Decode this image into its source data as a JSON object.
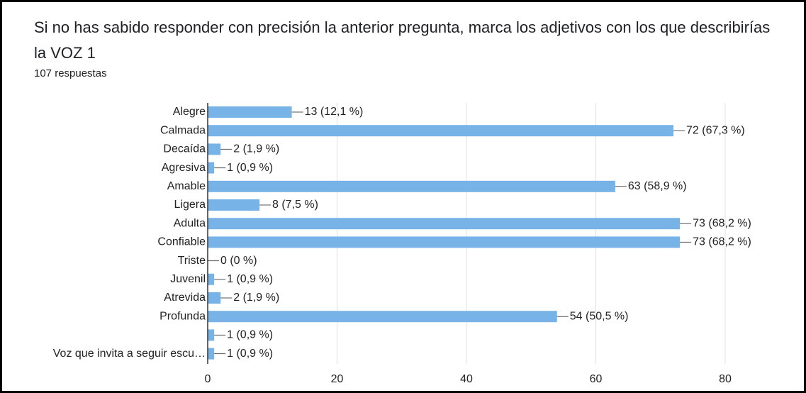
{
  "chart_data": {
    "type": "bar",
    "orientation": "horizontal",
    "title": "Si no has sabido responder con precisión la anterior pregunta, marca los adjetivos con los que describirías la VOZ 1",
    "subtitle": "107 respuestas",
    "categories": [
      "Alegre",
      "Calmada",
      "Decaída",
      "Agresiva",
      "Amable",
      "Ligera",
      "Adulta",
      "Confiable",
      "Triste",
      "Juvenil",
      "Atrevida",
      "Profunda",
      null,
      "Voz que invita a seguir escu…"
    ],
    "values": [
      13,
      72,
      2,
      1,
      63,
      8,
      73,
      73,
      0,
      1,
      2,
      54,
      1,
      1
    ],
    "value_labels": [
      "13 (12,1 %)",
      "72 (67,3 %)",
      "2 (1,9 %)",
      "1 (0,9 %)",
      "63 (58,9 %)",
      "8 (7,5 %)",
      "73 (68,2 %)",
      "73 (68,2 %)",
      "0 (0 %)",
      "1 (0,9 %)",
      "2 (1,9 %)",
      "54 (50,5 %)",
      "1 (0,9 %)",
      "1 (0,9 %)"
    ],
    "color": "#77b3e7",
    "xlim": [
      0,
      80
    ],
    "xticks": [
      0,
      20,
      40,
      60,
      80
    ],
    "grid": true
  }
}
